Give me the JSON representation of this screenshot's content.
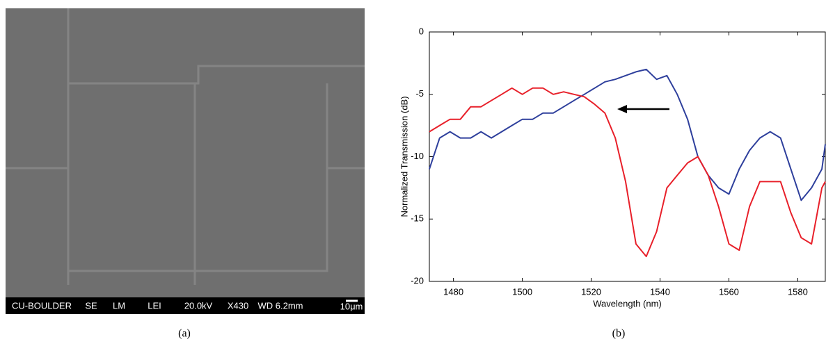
{
  "captions": [
    "(a)",
    "(b)"
  ],
  "sem_info_bar": [
    "CU-BOULDER",
    "SE",
    "LM",
    "LEI",
    "20.0kV",
    "X430",
    "WD 6.2mm",
    "10μm"
  ],
  "chart_data": {
    "type": "line",
    "x_label": "Wavelength (nm)",
    "y_label": "Normalized Transmission (dB)",
    "x": [
      1473,
      1476,
      1479,
      1482,
      1485,
      1488,
      1491,
      1494,
      1497,
      1500,
      1503,
      1506,
      1509,
      1512,
      1515,
      1518,
      1521,
      1524,
      1527,
      1530,
      1533,
      1536,
      1539,
      1542,
      1545,
      1548,
      1551,
      1554,
      1557,
      1560,
      1563,
      1566,
      1569,
      1572,
      1575,
      1578,
      1581,
      1584,
      1587,
      1588
    ],
    "series": [
      {
        "color": "#2e3f9c",
        "values": [
          -11,
          -8.5,
          -8,
          -8.5,
          -8.5,
          -8,
          -8.5,
          -8,
          -7.5,
          -7,
          -7,
          -6.5,
          -6.5,
          -6,
          -5.5,
          -5,
          -4.5,
          -4,
          -3.8,
          -3.5,
          -3.2,
          -3,
          -3.8,
          -3.5,
          -5,
          -7,
          -10,
          -11.5,
          -12.5,
          -13,
          -11,
          -9.5,
          -8.5,
          -8,
          -8.5,
          -11,
          -13.5,
          -12.5,
          -11,
          -9
        ]
      },
      {
        "color": "#e8202a",
        "values": [
          -8,
          -7.5,
          -7,
          -7,
          -6,
          -6,
          -5.5,
          -5,
          -4.5,
          -5,
          -4.5,
          -4.5,
          -5,
          -4.8,
          -5,
          -5.2,
          -5.8,
          -6.5,
          -8.5,
          -12,
          -17,
          -18,
          -16,
          -12.5,
          -11.5,
          -10.5,
          -10,
          -11.5,
          -14,
          -17,
          -17.5,
          -14,
          -12,
          -12,
          -12,
          -14.5,
          -16.5,
          -17,
          -12.5,
          -12
        ]
      }
    ],
    "xlim": [
      1473,
      1588
    ],
    "ylim": [
      -20,
      0
    ],
    "xticks": [
      1480,
      1500,
      1520,
      1540,
      1560,
      1580
    ],
    "yticks": [
      0,
      -5,
      -10,
      -15,
      -20
    ]
  }
}
